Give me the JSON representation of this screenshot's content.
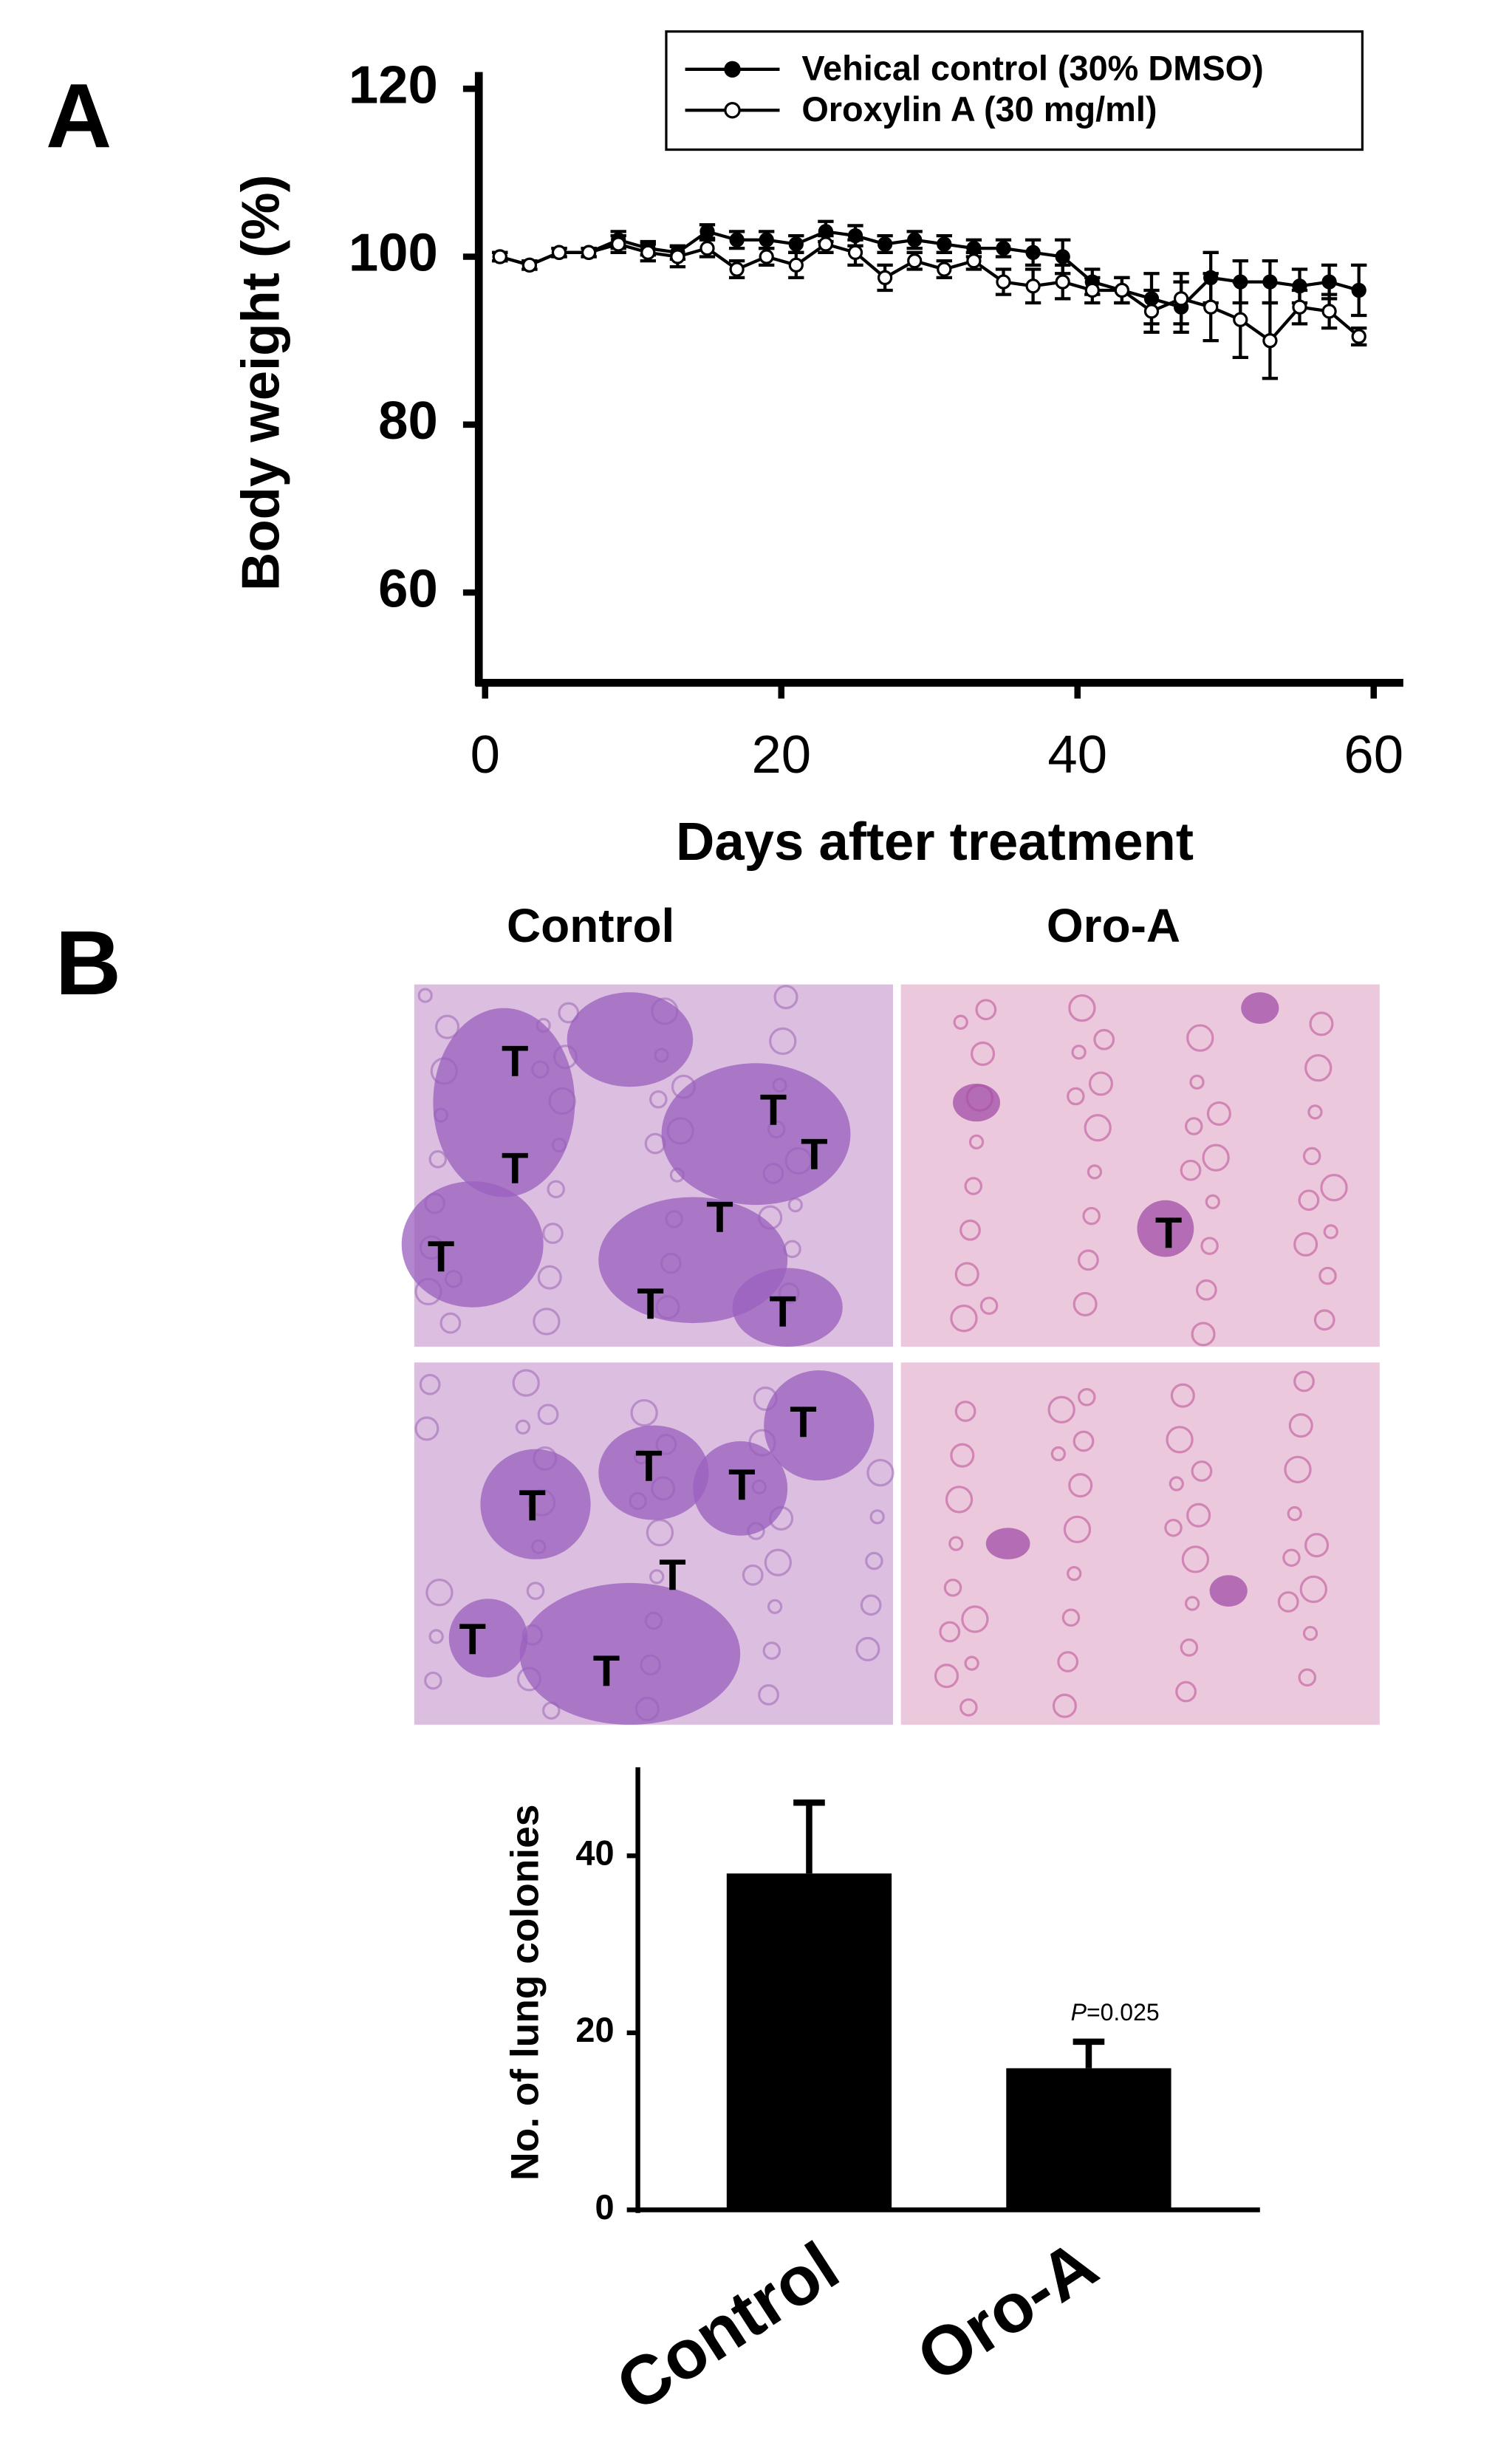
{
  "panel_labels": [
    "A",
    "B"
  ],
  "chart_data": [
    {
      "type": "line",
      "xlabel": "Days after treatment",
      "ylabel": "Body weight (%)",
      "x": [
        1,
        3,
        5,
        7,
        9,
        11,
        13,
        15,
        17,
        19,
        21,
        23,
        25,
        27,
        29,
        31,
        33,
        35,
        37,
        39,
        41,
        43,
        45,
        47,
        49,
        51,
        53,
        55,
        57,
        59
      ],
      "series": [
        {
          "name": "Vehical control (30% DMSO)",
          "color": "#000000",
          "marker_fill": "#000000",
          "values": [
            100,
            99,
            100.5,
            100.5,
            102,
            101,
            100.5,
            103,
            102,
            102,
            101.5,
            103,
            102.5,
            101.5,
            102,
            101.5,
            101,
            101,
            100.5,
            100,
            97,
            96,
            95,
            94,
            97.5,
            97,
            97,
            96.5,
            97,
            96
          ],
          "errors": [
            0.5,
            0.5,
            0.5,
            0.5,
            1,
            0.8,
            0.8,
            0.8,
            1,
            1,
            1,
            1.2,
            1.2,
            1,
            1,
            1,
            1,
            1,
            1.5,
            2,
            1.5,
            1.5,
            3,
            3,
            3,
            2.5,
            2.5,
            2,
            2,
            3
          ]
        },
        {
          "name": "Oroxylin A (30 mg/ml)",
          "color": "#000000",
          "marker_fill": "#ffffff",
          "values": [
            100,
            99,
            100.5,
            100.5,
            101.5,
            100.5,
            100,
            101,
            98.5,
            100,
            99,
            101.5,
            100.5,
            97.5,
            99.5,
            98.5,
            99.5,
            97,
            96.5,
            97,
            96,
            96,
            93.5,
            95,
            94,
            92.5,
            90,
            94,
            93.5,
            90.5
          ],
          "errors": [
            0.5,
            0.5,
            0.5,
            0.5,
            1,
            1,
            1.2,
            1,
            1,
            1,
            1.5,
            1,
            1.5,
            1.5,
            1,
            1,
            1,
            1.5,
            2,
            2,
            1.5,
            1.5,
            2.5,
            3,
            4,
            4.5,
            4.5,
            2,
            2,
            1
          ]
        }
      ],
      "xlim": [
        0,
        62
      ],
      "ylim": [
        50,
        122
      ],
      "xticks": [
        0,
        20,
        40,
        60
      ],
      "yticks": [
        60,
        80,
        100,
        120
      ],
      "legend": "top-right"
    },
    {
      "type": "bar",
      "ylabel": "No. of lung colonies",
      "categories": [
        "Control",
        "Oro-A"
      ],
      "values": [
        38,
        16
      ],
      "errors": [
        8,
        3
      ],
      "color": "#000000",
      "ylim": [
        0,
        50
      ],
      "yticks": [
        0,
        20,
        40
      ],
      "p_symbol": "P",
      "p_value_text": "=0.025"
    }
  ],
  "histology": {
    "column_titles": [
      "Control",
      "Oro-A"
    ],
    "images": [
      {
        "markers": [
          "T",
          "T",
          "T",
          "T",
          "T",
          "T",
          "T",
          "T"
        ]
      },
      {
        "markers": [
          "T"
        ]
      },
      {
        "markers": [
          "T",
          "T",
          "T",
          "T",
          "T",
          "T",
          "T"
        ]
      },
      {
        "markers": []
      }
    ]
  }
}
